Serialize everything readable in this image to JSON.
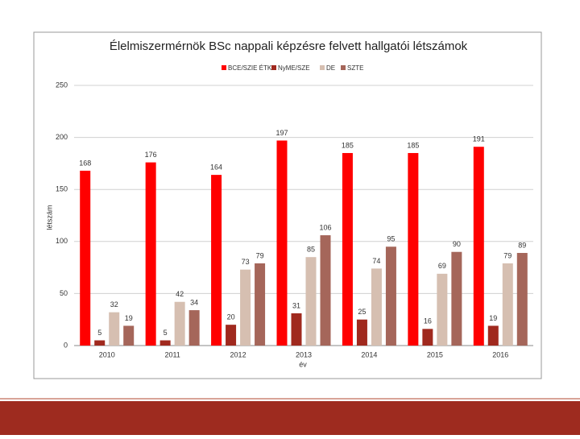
{
  "chart_data": {
    "type": "bar",
    "title": "Élelmiszermérnök BSc nappali képzésre felvett hallgatói létszámok",
    "x_label": "év",
    "y_label": "létszám",
    "categories": [
      "2010",
      "2011",
      "2012",
      "2013",
      "2014",
      "2015",
      "2016"
    ],
    "series": [
      {
        "name": "BCE/SZIE ÉTK",
        "color": "#ff0000",
        "values": [
          168,
          176,
          164,
          197,
          185,
          185,
          191
        ]
      },
      {
        "name": "NyME/SZE",
        "color": "#a0291e",
        "values": [
          5,
          5,
          20,
          31,
          25,
          16,
          19
        ]
      },
      {
        "name": "DE",
        "color": "#d6bfb1",
        "values": [
          32,
          42,
          73,
          85,
          74,
          69,
          79
        ]
      },
      {
        "name": "SZTE",
        "color": "#a5665a",
        "values": [
          19,
          34,
          79,
          106,
          95,
          90,
          89
        ]
      }
    ],
    "ylim": [
      0,
      250
    ],
    "yticks": [
      0,
      50,
      100,
      150,
      200,
      250
    ],
    "grid": true
  }
}
